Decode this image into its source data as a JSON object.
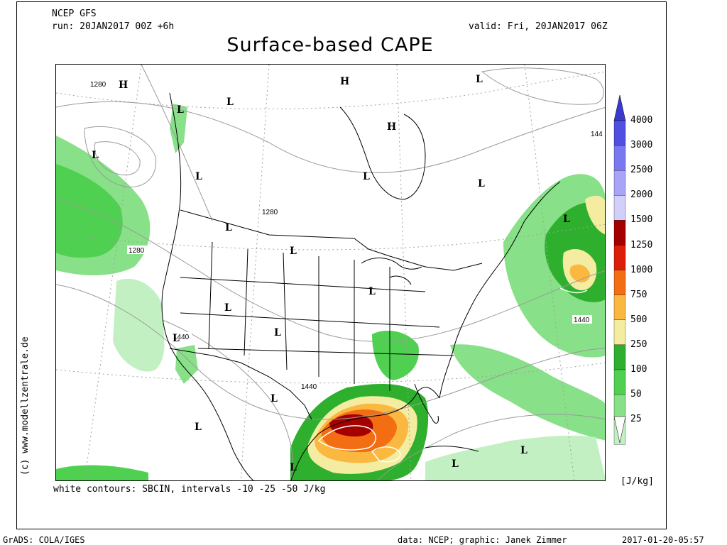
{
  "header": {
    "model": "NCEP GFS",
    "run": "run: 20JAN2017 00Z +6h",
    "valid": "valid: Fri, 20JAN2017 06Z",
    "title": "Surface-based CAPE"
  },
  "footer": {
    "contours_note": "white contours: SBCIN, intervals -10 -25 -50 J/kg",
    "grads": "GrADS: COLA/IGES",
    "data_credit": "data: NCEP; graphic: Janek Zimmer",
    "timestamp": "2017-01-20-05:57",
    "site": "(c) www.modellzentrale.de"
  },
  "map": {
    "pressure_labels": [
      "1280",
      "1280",
      "1280",
      "1440",
      "1440",
      "1440",
      "144"
    ],
    "high_label": "H",
    "low_label": "L"
  },
  "colorbar": {
    "unit": "[J/kg]",
    "levels": [
      {
        "label": "4000",
        "color": "#5050e0"
      },
      {
        "label": "3000",
        "color": "#7a78f0"
      },
      {
        "label": "2500",
        "color": "#a8a4f8"
      },
      {
        "label": "2000",
        "color": "#d2d0fa"
      },
      {
        "label": "1500",
        "color": "#a40000"
      },
      {
        "label": "1250",
        "color": "#dc1f0a"
      },
      {
        "label": "1000",
        "color": "#f36d12"
      },
      {
        "label": "750",
        "color": "#fbb840"
      },
      {
        "label": "500",
        "color": "#f4eca0"
      },
      {
        "label": "250",
        "color": "#2eb02e"
      },
      {
        "label": "100",
        "color": "#50d050"
      },
      {
        "label": "50",
        "color": "#88e088"
      },
      {
        "label": "25",
        "color": "#c2f0c2"
      }
    ]
  },
  "colors": {
    "frame": "#000000",
    "contour": "#9a9a9a",
    "border": "#000000"
  }
}
